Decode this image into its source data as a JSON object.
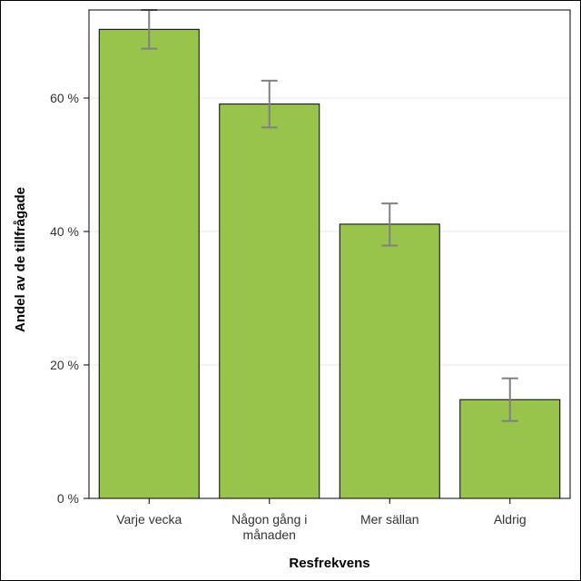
{
  "chart_data": {
    "type": "bar",
    "categories": [
      "Varje vecka",
      "Någon gång i månaden",
      "Mer sällan",
      "Aldrig"
    ],
    "category_label_lines": [
      [
        "Varje vecka"
      ],
      [
        "Någon gång i",
        "månaden"
      ],
      [
        "Mer sällan"
      ],
      [
        "Aldrig"
      ]
    ],
    "values": [
      70.3,
      59.1,
      41.1,
      14.8
    ],
    "error_low": [
      67.4,
      55.6,
      37.9,
      11.6
    ],
    "error_high": [
      73.2,
      62.6,
      44.2,
      18.0
    ],
    "xlabel": "Resfrekvens",
    "ylabel": "Andel av de tillfrågade",
    "ylim": [
      0,
      73.2
    ],
    "yticks": [
      0,
      20,
      40,
      60
    ],
    "ytick_labels": [
      "0 %",
      "20 %",
      "40 %",
      "60 %"
    ],
    "grid": true,
    "bar_color": "#99c44c",
    "errorbar_color": "#808080"
  }
}
